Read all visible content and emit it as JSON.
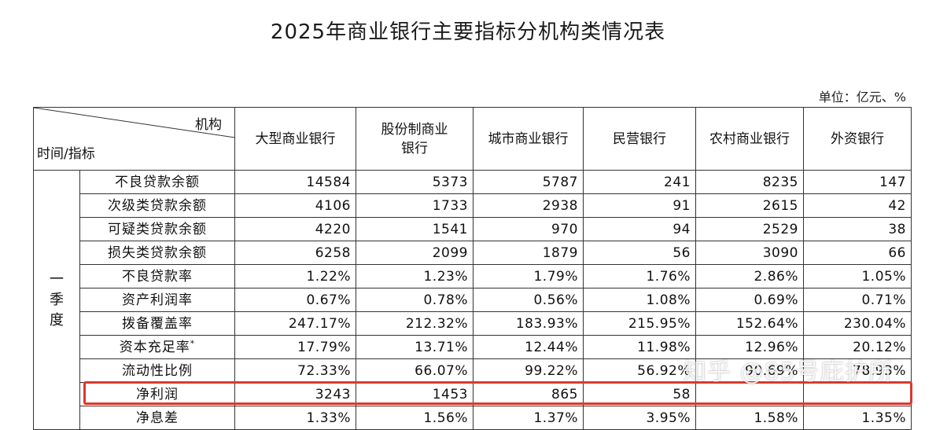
{
  "title": "2025年商业银行主要指标分机构类情况表",
  "unit": "单位：亿元、%",
  "header": {
    "corner_top": "机构",
    "corner_bottom": "时间/指标",
    "columns": [
      "大型商业银行",
      "股份制商业\n银行",
      "城市商业银行",
      "民营银行",
      "农村商业银行",
      "外资银行"
    ]
  },
  "period": "一\n季\n度",
  "rows": [
    {
      "label": "不良贷款余额",
      "values": [
        "14584",
        "5373",
        "5787",
        "241",
        "8235",
        "147"
      ]
    },
    {
      "label": "次级类贷款余额",
      "values": [
        "4106",
        "1733",
        "2938",
        "91",
        "2615",
        "42"
      ]
    },
    {
      "label": "可疑类贷款余额",
      "values": [
        "4220",
        "1541",
        "970",
        "94",
        "2529",
        "38"
      ]
    },
    {
      "label": "损失类贷款余额",
      "values": [
        "6258",
        "2099",
        "1879",
        "56",
        "3090",
        "66"
      ]
    },
    {
      "label": "不良贷款率",
      "values": [
        "1.22%",
        "1.23%",
        "1.79%",
        "1.76%",
        "2.86%",
        "1.05%"
      ]
    },
    {
      "label": "资产利润率",
      "values": [
        "0.67%",
        "0.78%",
        "0.56%",
        "1.08%",
        "0.69%",
        "0.71%"
      ]
    },
    {
      "label": "拨备覆盖率",
      "values": [
        "247.17%",
        "212.32%",
        "183.93%",
        "215.95%",
        "152.64%",
        "230.04%"
      ]
    },
    {
      "label": "资本充足率",
      "sup": "*",
      "values": [
        "17.79%",
        "13.71%",
        "12.44%",
        "11.98%",
        "12.96%",
        "20.12%"
      ]
    },
    {
      "label": "流动性比例",
      "values": [
        "72.33%",
        "66.07%",
        "99.22%",
        "56.92%",
        "90.69%",
        "78.93%"
      ]
    },
    {
      "label": "净利润",
      "values": [
        "3243",
        "1453",
        "865",
        "58",
        "",
        ""
      ]
    },
    {
      "label": "净息差",
      "values": [
        "1.33%",
        "1.56%",
        "1.37%",
        "3.95%",
        "1.58%",
        "1.35%"
      ]
    }
  ],
  "watermark": "知乎 @85号庇护所",
  "colors": {
    "highlight": "#d93a2b",
    "border": "#333333"
  }
}
